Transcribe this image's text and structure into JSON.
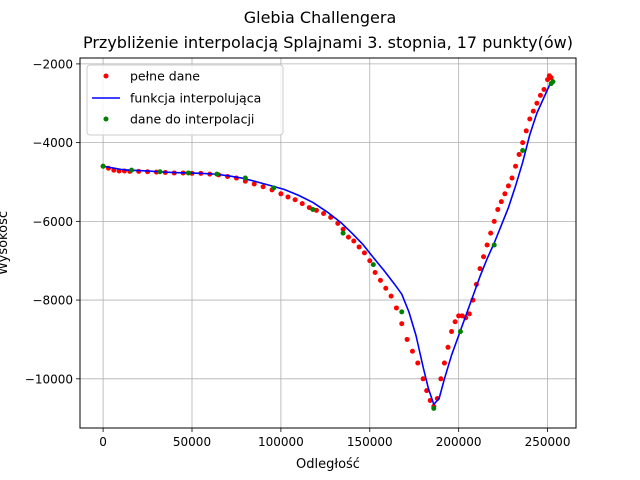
{
  "chart_data": {
    "type": "line",
    "title": "Glebia Challengera",
    "subtitle": "Przybliżenie interpolacją Splajnami 3. stopnia, 17 punkty(ów)",
    "xlabel": "Odległość",
    "ylabel": "Wysokość",
    "xlim": [
      -13000,
      266000
    ],
    "ylim": [
      -11250,
      -1850
    ],
    "x_ticks": [
      0,
      50000,
      100000,
      150000,
      200000,
      250000
    ],
    "x_tick_labels": [
      "0",
      "50000",
      "100000",
      "150000",
      "200000",
      "250000"
    ],
    "y_ticks": [
      -10000,
      -8000,
      -6000,
      -4000,
      -2000
    ],
    "y_tick_labels": [
      "−10000",
      "−8000",
      "−6000",
      "−4000",
      "−2000"
    ],
    "grid": true,
    "legend_position": "top-left",
    "colors": {
      "full": "#ff0000",
      "interp": "#0000ff",
      "nodes": "#008000"
    },
    "series": [
      {
        "name": "pełne dane",
        "style": "dots",
        "x": [
          0,
          3000,
          6000,
          9000,
          12000,
          15000,
          20000,
          25000,
          30000,
          35000,
          40000,
          45000,
          50000,
          55000,
          60000,
          65000,
          70000,
          75000,
          80000,
          85000,
          90000,
          95000,
          100000,
          104000,
          108000,
          112000,
          116000,
          120000,
          124000,
          128000,
          132000,
          135000,
          138000,
          141000,
          144000,
          147000,
          150000,
          153000,
          156000,
          159000,
          162000,
          165000,
          168000,
          171000,
          174000,
          177000,
          180000,
          182000,
          184000,
          186000,
          188000,
          190000,
          192000,
          194000,
          196000,
          198000,
          200000,
          202000,
          204000,
          206000,
          208000,
          210000,
          212000,
          214000,
          216000,
          218000,
          220000,
          222000,
          224000,
          226000,
          228000,
          230000,
          232000,
          234000,
          236000,
          238000,
          240000,
          242000,
          244000,
          246000,
          248000,
          250000,
          251000,
          252000
        ],
        "y": [
          -4600,
          -4650,
          -4700,
          -4720,
          -4720,
          -4730,
          -4730,
          -4740,
          -4750,
          -4760,
          -4770,
          -4770,
          -4780,
          -4780,
          -4800,
          -4820,
          -4860,
          -4900,
          -4980,
          -5050,
          -5120,
          -5200,
          -5300,
          -5380,
          -5450,
          -5550,
          -5650,
          -5720,
          -5800,
          -5900,
          -6050,
          -6200,
          -6400,
          -6500,
          -6650,
          -6800,
          -7000,
          -7300,
          -7500,
          -7700,
          -7900,
          -8200,
          -8600,
          -9000,
          -9300,
          -9600,
          -10000,
          -10300,
          -10550,
          -10700,
          -10500,
          -10000,
          -9600,
          -9200,
          -8800,
          -8550,
          -8400,
          -8400,
          -8450,
          -8350,
          -8000,
          -7600,
          -7200,
          -6900,
          -6600,
          -6300,
          -6000,
          -5700,
          -5500,
          -5300,
          -5100,
          -4900,
          -4600,
          -4300,
          -4000,
          -3700,
          -3400,
          -3200,
          -3000,
          -2800,
          -2650,
          -2400,
          -2300,
          -2350
        ]
      },
      {
        "name": "funkcja interpolująca",
        "style": "line",
        "x": [
          0,
          5000,
          10000,
          15000,
          20000,
          25000,
          31000,
          40000,
          47000,
          55000,
          63000,
          70000,
          78000,
          86000,
          94000,
          102000,
          110000,
          118000,
          126000,
          134000,
          140000,
          146000,
          152000,
          158000,
          164000,
          168000,
          172000,
          176000,
          180000,
          183000,
          186000,
          189000,
          192000,
          196000,
          200000,
          204000,
          208000,
          212000,
          216000,
          220000,
          224000,
          228000,
          232000,
          236000,
          240000,
          244000,
          248000,
          252000,
          253000
        ],
        "y": [
          -4600,
          -4640,
          -4680,
          -4700,
          -4710,
          -4720,
          -4740,
          -4760,
          -4770,
          -4780,
          -4800,
          -4840,
          -4900,
          -4990,
          -5090,
          -5190,
          -5340,
          -5520,
          -5760,
          -6040,
          -6300,
          -6580,
          -6920,
          -7250,
          -7600,
          -7850,
          -8300,
          -8900,
          -9700,
          -10250,
          -10650,
          -10500,
          -10000,
          -9400,
          -8900,
          -8400,
          -7900,
          -7400,
          -6950,
          -6550,
          -6100,
          -5650,
          -5100,
          -4500,
          -3800,
          -3250,
          -2850,
          -2450,
          -2450
        ]
      },
      {
        "name": "dane do interpolacji",
        "style": "dots",
        "x": [
          0,
          16000,
          32000,
          48000,
          64000,
          80000,
          96000,
          118000,
          135000,
          152000,
          168000,
          186000,
          201000,
          220000,
          236000,
          252000,
          253000
        ],
        "y": [
          -4600,
          -4700,
          -4740,
          -4770,
          -4800,
          -4900,
          -5150,
          -5700,
          -6300,
          -7100,
          -8300,
          -10750,
          -8800,
          -6600,
          -4200,
          -2500,
          -2450
        ]
      }
    ]
  }
}
